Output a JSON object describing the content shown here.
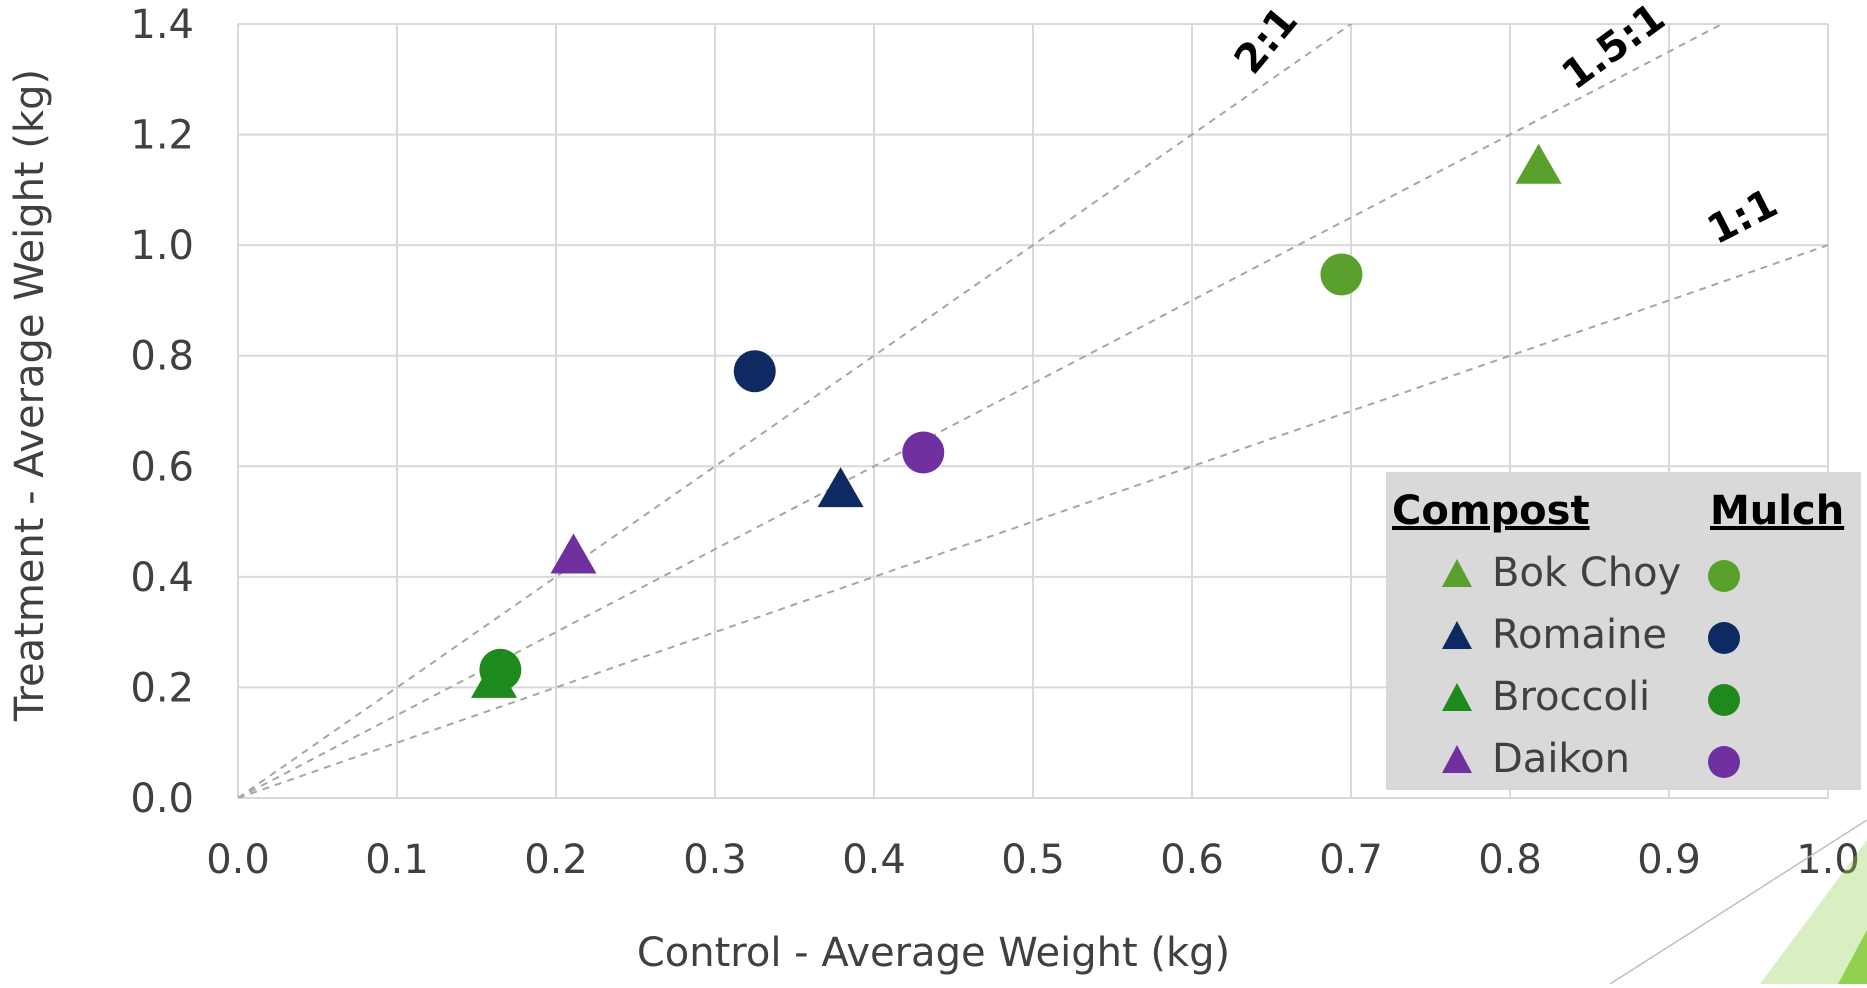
{
  "chart_data": {
    "type": "scatter",
    "title": "",
    "xlabel": "Control - Average Weight (kg)",
    "ylabel": "Treatment - Average Weight (kg)",
    "xlim": [
      0,
      1.0
    ],
    "ylim": [
      0,
      1.4
    ],
    "x_ticks": [
      "0.0",
      "0.1",
      "0.2",
      "0.3",
      "0.4",
      "0.5",
      "0.6",
      "0.7",
      "0.8",
      "0.9",
      "1.0"
    ],
    "y_ticks": [
      "0.0",
      "0.2",
      "0.4",
      "0.6",
      "0.8",
      "1.0",
      "1.2",
      "1.4"
    ],
    "grid": true,
    "reference_lines": [
      {
        "label": "2:1",
        "slope": 2
      },
      {
        "label": "1.5:1",
        "slope": 1.5
      },
      {
        "label": "1:1",
        "slope": 1
      }
    ],
    "legend": {
      "placement": "bottom-right",
      "compost_header": "Compost",
      "mulch_header": "Mulch",
      "entries": [
        "Bok Choy",
        "Romaine",
        "Broccoli",
        "Daikon"
      ]
    },
    "series": [
      {
        "name": "Bok Choy",
        "treatment": "Compost",
        "marker": "triangle",
        "color": "#5aa02c",
        "x": 0.818,
        "y": 1.14
      },
      {
        "name": "Bok Choy",
        "treatment": "Mulch",
        "marker": "circle",
        "color": "#5aa02c",
        "x": 0.694,
        "y": 0.947
      },
      {
        "name": "Romaine",
        "treatment": "Compost",
        "marker": "triangle",
        "color": "#0d2a63",
        "x": 0.379,
        "y": 0.555
      },
      {
        "name": "Romaine",
        "treatment": "Mulch",
        "marker": "circle",
        "color": "#0d2a63",
        "x": 0.325,
        "y": 0.772
      },
      {
        "name": "Broccoli",
        "treatment": "Compost",
        "marker": "triangle",
        "color": "#1e8a1e",
        "x": 0.161,
        "y": 0.21
      },
      {
        "name": "Broccoli",
        "treatment": "Mulch",
        "marker": "circle",
        "color": "#1e8a1e",
        "x": 0.165,
        "y": 0.232
      },
      {
        "name": "Daikon",
        "treatment": "Compost",
        "marker": "triangle",
        "color": "#7030a0",
        "x": 0.211,
        "y": 0.435
      },
      {
        "name": "Daikon",
        "treatment": "Mulch",
        "marker": "circle",
        "color": "#7030a0",
        "x": 0.431,
        "y": 0.625
      }
    ]
  },
  "colors": {
    "grid": "#d9d9d9",
    "reference_line": "#a6a6a6",
    "tick_text": "#404040",
    "legend_bg": "#d9d9d9",
    "decoration": "#92d050"
  }
}
